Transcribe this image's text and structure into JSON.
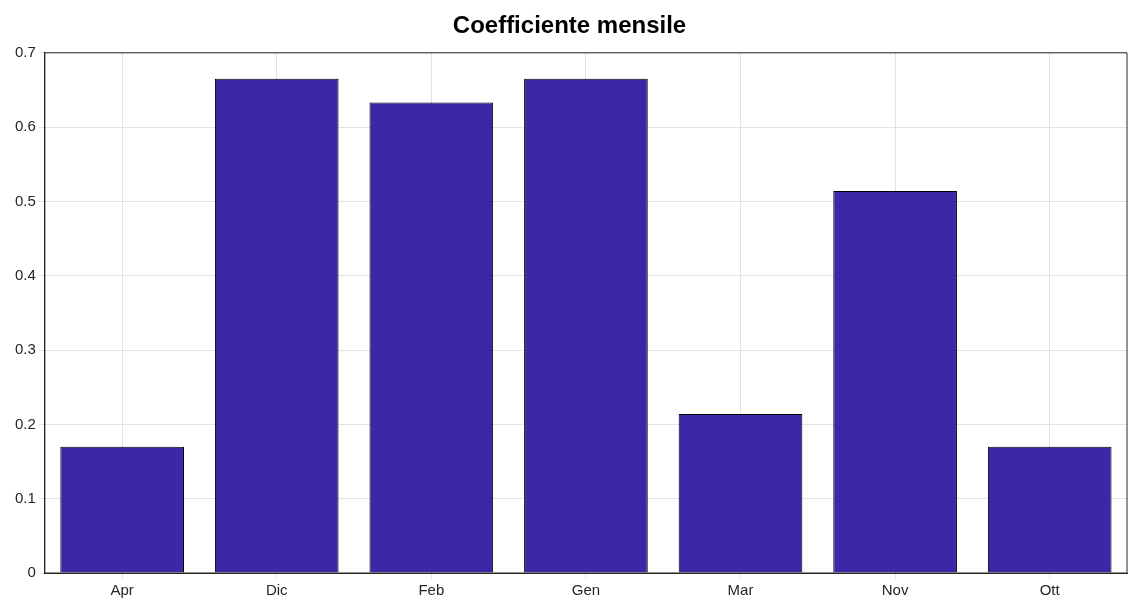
{
  "chart_data": {
    "type": "bar",
    "title": "Coefficiente mensile",
    "categories": [
      "Apr",
      "Dic",
      "Feb",
      "Gen",
      "Mar",
      "Nov",
      "Ott"
    ],
    "values": [
      0.17,
      0.665,
      0.633,
      0.665,
      0.214,
      0.514,
      0.17
    ],
    "color": "#3c27a6",
    "ylim": [
      0,
      0.7
    ],
    "yticks": [
      0,
      0.1,
      0.2,
      0.3,
      0.4,
      0.5,
      0.6,
      0.7
    ],
    "grid": true,
    "legend": false
  }
}
